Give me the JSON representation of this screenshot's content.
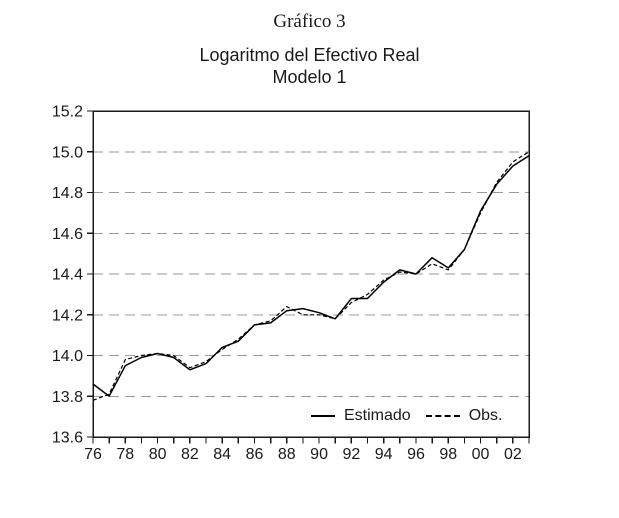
{
  "figure": {
    "title": "Gráfico 3",
    "subtitle": "Logaritmo del Efectivo Real",
    "model": "Modelo 1"
  },
  "legend": {
    "estimado": "Estimado",
    "obs": "Obs."
  },
  "colors": {
    "line": "#000000",
    "grid": "#9a9a9a",
    "frame": "#1a1a1a",
    "text": "#1a1a1a",
    "background": "#ffffff"
  },
  "chart_data": {
    "type": "line",
    "title": "Logaritmo del Efectivo Real",
    "subtitle": "Modelo 1",
    "xlabel": "",
    "ylabel": "",
    "x": [
      1976,
      1977,
      1978,
      1979,
      1980,
      1981,
      1982,
      1983,
      1984,
      1985,
      1986,
      1987,
      1988,
      1989,
      1990,
      1991,
      1992,
      1993,
      1994,
      1995,
      1996,
      1997,
      1998,
      1999,
      2000,
      2001,
      2002,
      2003
    ],
    "x_tick_years": [
      1976,
      1978,
      1980,
      1982,
      1984,
      1986,
      1988,
      1990,
      1992,
      1994,
      1996,
      1998,
      2000,
      2002
    ],
    "x_tick_labels": [
      "76",
      "78",
      "80",
      "82",
      "84",
      "86",
      "88",
      "90",
      "92",
      "94",
      "96",
      "98",
      "00",
      "02"
    ],
    "ylim": [
      13.6,
      15.2
    ],
    "y_ticks": [
      13.6,
      13.8,
      14.0,
      14.2,
      14.4,
      14.6,
      14.8,
      15.0,
      15.2
    ],
    "y_tick_labels": [
      "13.6",
      "13.8",
      "14.0",
      "14.2",
      "14.4",
      "14.6",
      "14.8",
      "15.0",
      "15.2"
    ],
    "grid": "horizontal-dashed",
    "legend_position": "bottom-right-inside",
    "series": [
      {
        "name": "Estimado",
        "style": "solid",
        "values": [
          13.86,
          13.8,
          13.95,
          13.99,
          14.01,
          13.99,
          13.93,
          13.96,
          14.04,
          14.07,
          14.15,
          14.16,
          14.22,
          14.23,
          14.21,
          14.18,
          14.28,
          14.28,
          14.36,
          14.42,
          14.4,
          14.48,
          14.43,
          14.52,
          14.71,
          14.84,
          14.93,
          14.98
        ]
      },
      {
        "name": "Obs.",
        "style": "dashed",
        "values": [
          13.78,
          13.81,
          13.98,
          14.0,
          14.01,
          14.0,
          13.94,
          13.97,
          14.03,
          14.08,
          14.15,
          14.17,
          14.24,
          14.2,
          14.2,
          14.18,
          14.26,
          14.3,
          14.37,
          14.41,
          14.4,
          14.45,
          14.42,
          14.52,
          14.7,
          14.85,
          14.95,
          15.0
        ]
      }
    ]
  }
}
